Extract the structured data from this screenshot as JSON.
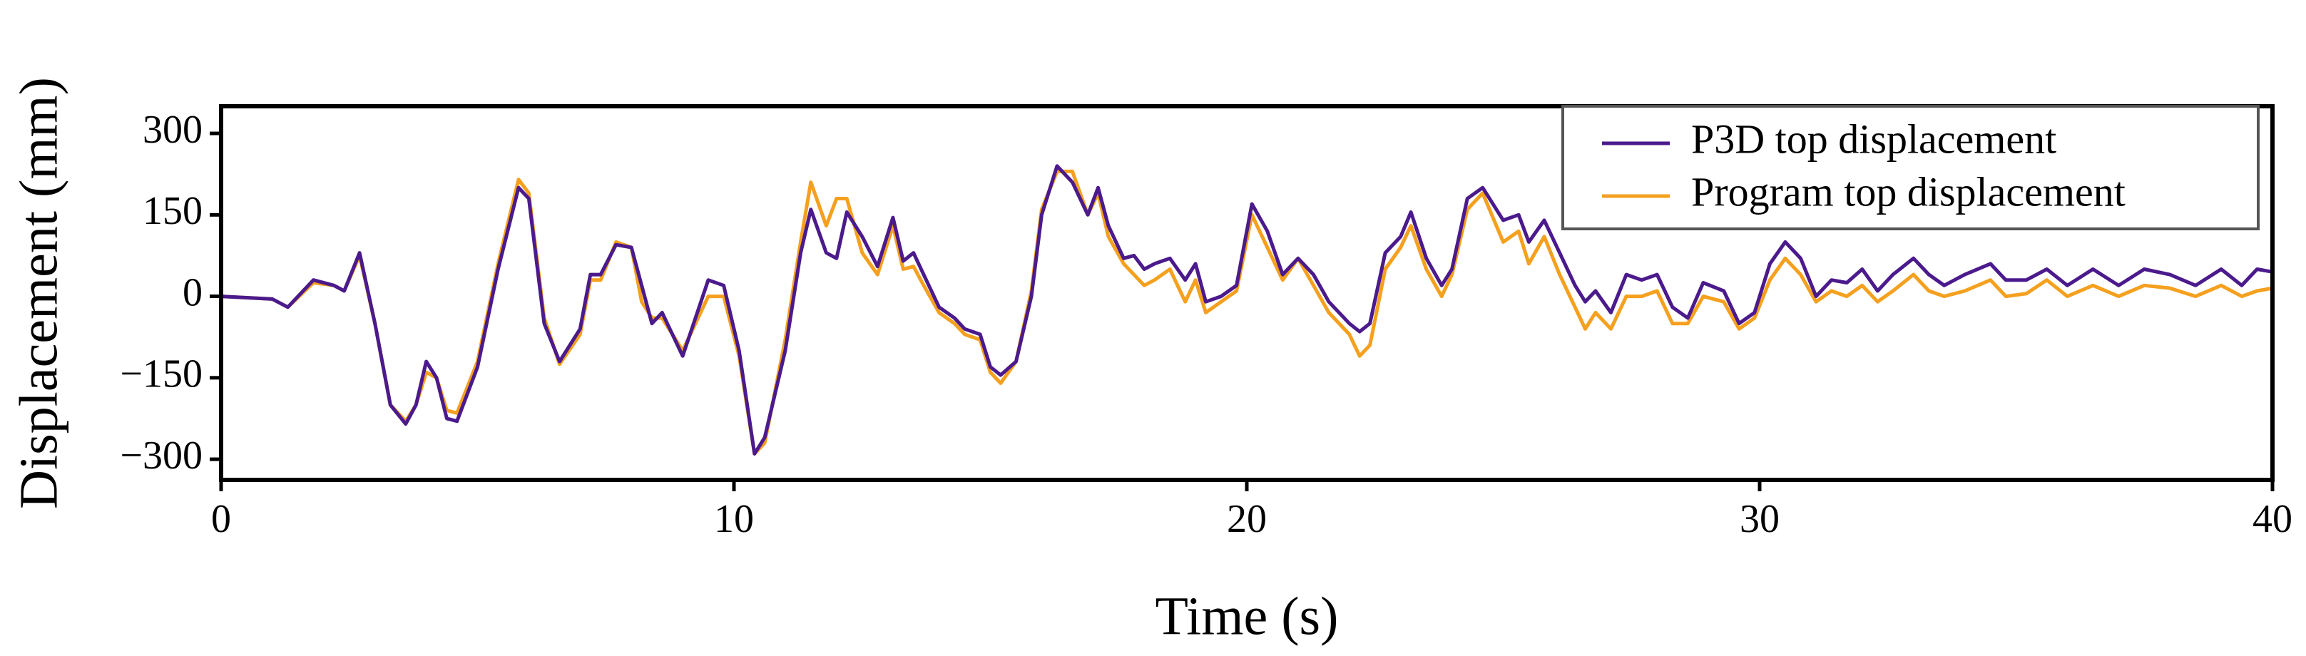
{
  "chart_data": {
    "type": "line",
    "xlabel": "Time (s)",
    "ylabel": "Displacement (mm)",
    "x": [
      0,
      1,
      1.3,
      1.8,
      2.2,
      2.4,
      2.7,
      3.0,
      3.3,
      3.6,
      3.8,
      4.0,
      4.2,
      4.4,
      4.6,
      5.0,
      5.4,
      5.8,
      6.0,
      6.3,
      6.6,
      7.0,
      7.2,
      7.4,
      7.7,
      8.0,
      8.2,
      8.4,
      8.6,
      9.0,
      9.5,
      9.8,
      10.1,
      10.4,
      10.6,
      11.0,
      11.3,
      11.5,
      11.8,
      12.0,
      12.2,
      12.5,
      12.8,
      13.1,
      13.3,
      13.5,
      13.7,
      14.0,
      14.3,
      14.5,
      14.8,
      15.0,
      15.2,
      15.5,
      15.8,
      16.0,
      16.3,
      16.6,
      16.9,
      17.1,
      17.3,
      17.6,
      17.8,
      18.0,
      18.2,
      18.5,
      18.8,
      19.0,
      19.2,
      19.5,
      19.8,
      20.1,
      20.4,
      20.7,
      21.0,
      21.3,
      21.6,
      22.0,
      22.2,
      22.4,
      22.7,
      23.0,
      23.2,
      23.5,
      23.8,
      24.0,
      24.3,
      24.6,
      25.0,
      25.3,
      25.5,
      25.8,
      26.1,
      26.4,
      26.6,
      26.8,
      27.1,
      27.4,
      27.7,
      28.0,
      28.3,
      28.6,
      28.9,
      29.3,
      29.6,
      29.9,
      30.2,
      30.5,
      30.8,
      31.1,
      31.4,
      31.7,
      32.0,
      32.3,
      32.6,
      33.0,
      33.3,
      33.6,
      34.0,
      34.5,
      34.8,
      35.2,
      35.6,
      36.0,
      36.5,
      37.0,
      37.5,
      38.0,
      38.5,
      39.0,
      39.4,
      39.7,
      40.0
    ],
    "series": [
      {
        "name": "P3D top displacement",
        "color": "#4b1a8c",
        "values": [
          0,
          -5,
          -20,
          30,
          20,
          10,
          80,
          -50,
          -200,
          -235,
          -200,
          -120,
          -150,
          -225,
          -230,
          -130,
          50,
          200,
          180,
          -50,
          -120,
          -60,
          40,
          40,
          95,
          90,
          20,
          -50,
          -30,
          -110,
          30,
          20,
          -100,
          -290,
          -260,
          -100,
          80,
          160,
          80,
          70,
          155,
          110,
          55,
          145,
          65,
          80,
          40,
          -20,
          -40,
          -60,
          -70,
          -130,
          -145,
          -120,
          0,
          150,
          240,
          210,
          150,
          200,
          130,
          70,
          75,
          50,
          60,
          70,
          30,
          60,
          -10,
          0,
          20,
          170,
          120,
          40,
          70,
          40,
          -10,
          -50,
          -65,
          -50,
          80,
          110,
          155,
          70,
          20,
          50,
          180,
          200,
          140,
          150,
          100,
          140,
          80,
          20,
          -10,
          10,
          -30,
          40,
          30,
          40,
          -20,
          -40,
          25,
          10,
          -50,
          -30,
          60,
          100,
          70,
          0,
          30,
          25,
          50,
          10,
          40,
          70,
          40,
          20,
          40,
          60,
          30,
          30,
          50,
          20,
          50,
          20,
          50,
          40,
          20,
          50,
          20,
          50,
          45
        ]
      },
      {
        "name": "Program top displacement",
        "color": "#f5a01e",
        "values": [
          0,
          -5,
          -20,
          25,
          20,
          10,
          75,
          -50,
          -200,
          -230,
          -200,
          -140,
          -150,
          -210,
          -215,
          -120,
          60,
          215,
          190,
          -40,
          -125,
          -70,
          30,
          30,
          100,
          90,
          -10,
          -40,
          -40,
          -100,
          0,
          0,
          -110,
          -290,
          -270,
          -80,
          100,
          210,
          130,
          180,
          180,
          80,
          40,
          130,
          50,
          55,
          20,
          -30,
          -50,
          -70,
          -80,
          -140,
          -160,
          -120,
          10,
          160,
          230,
          230,
          150,
          190,
          110,
          60,
          40,
          20,
          30,
          50,
          -10,
          30,
          -30,
          -10,
          10,
          150,
          90,
          30,
          70,
          20,
          -30,
          -70,
          -110,
          -90,
          50,
          90,
          130,
          50,
          0,
          40,
          160,
          190,
          100,
          120,
          60,
          110,
          40,
          -20,
          -60,
          -30,
          -60,
          0,
          0,
          10,
          -50,
          -50,
          0,
          -10,
          -60,
          -40,
          30,
          70,
          40,
          -10,
          10,
          0,
          20,
          -10,
          10,
          40,
          10,
          0,
          10,
          30,
          0,
          5,
          30,
          0,
          20,
          0,
          20,
          15,
          0,
          20,
          0,
          10,
          15
        ]
      }
    ],
    "xlim": [
      0,
      40
    ],
    "xticks": [
      0,
      10,
      20,
      30,
      40
    ],
    "ylim": [
      -338,
      350
    ],
    "yticks": [
      {
        "value": -300,
        "label": "−300"
      },
      {
        "value": -150,
        "label": "−150"
      },
      0,
      150,
      300
    ],
    "legend": "upper right"
  }
}
